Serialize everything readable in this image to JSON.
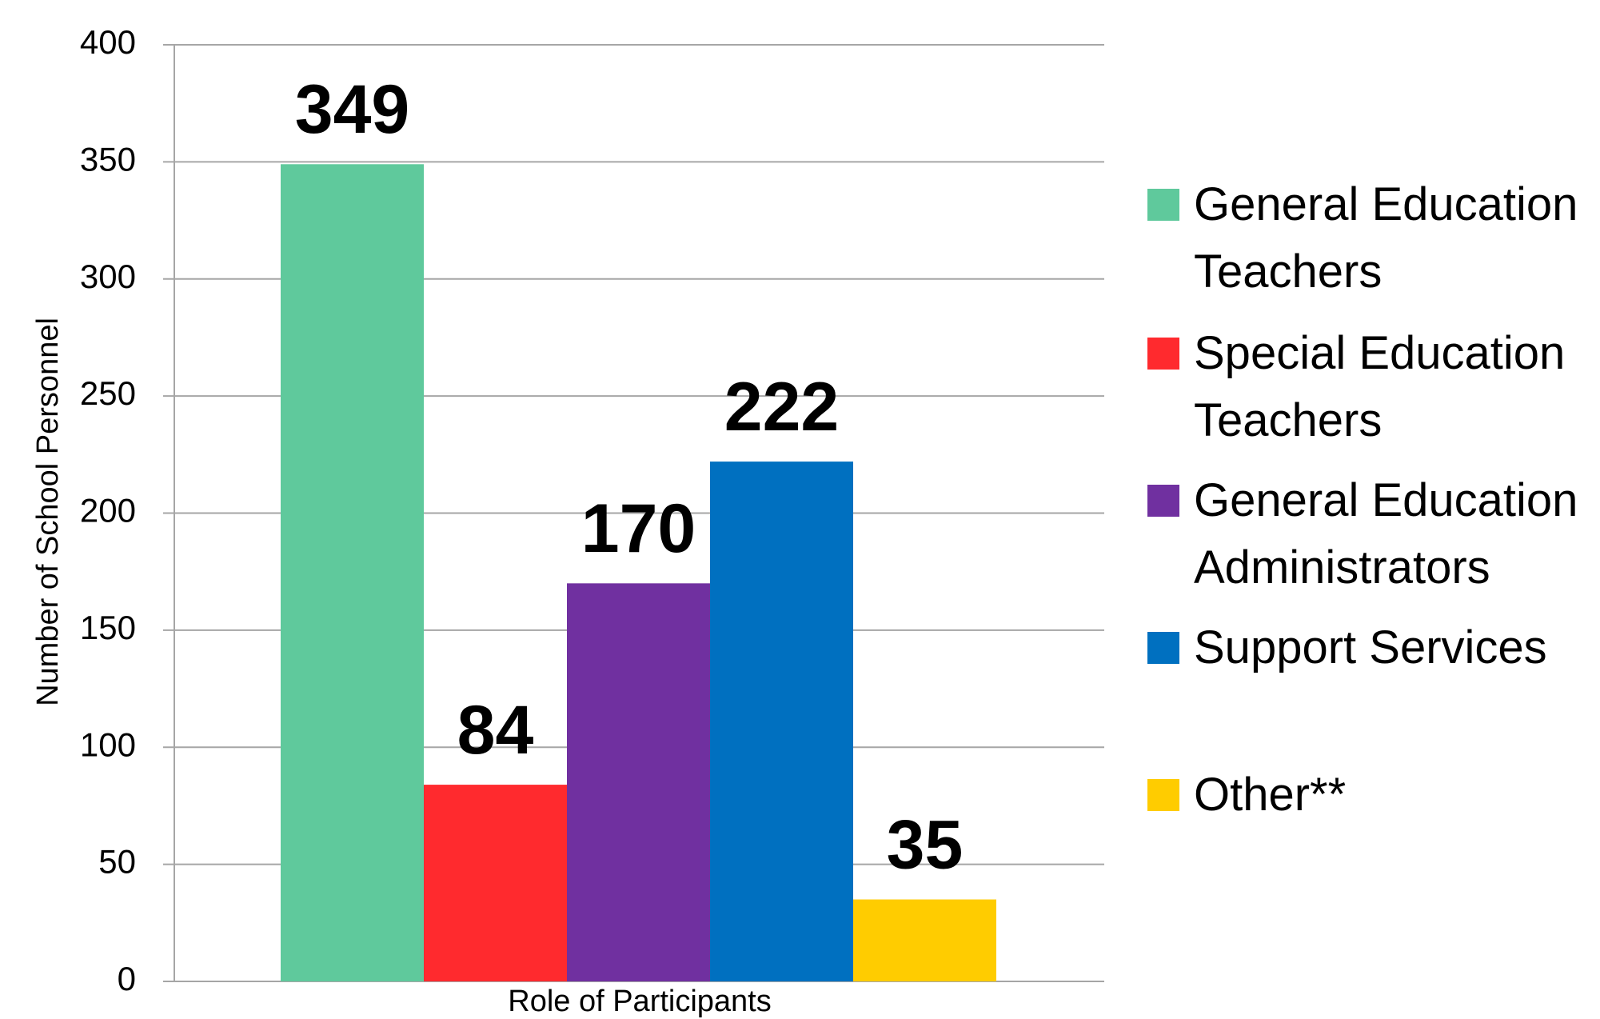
{
  "chart_data": {
    "type": "bar",
    "x_label": "Role of Participants",
    "y_label": "Number of School Personnel",
    "series": [
      {
        "name": "General Education Teachers",
        "color": "#5fc99c",
        "values": [
          349
        ]
      },
      {
        "name": "Special Education Teachers",
        "color": "#ff2a2e",
        "values": [
          84
        ]
      },
      {
        "name": "General Education Administrators",
        "color": "#7030a0",
        "values": [
          170
        ]
      },
      {
        "name": "Support Services",
        "color": "#0070c0",
        "values": [
          222
        ]
      },
      {
        "name": "Other**",
        "color": "#ffcc00",
        "values": [
          35
        ]
      }
    ],
    "ylim": [
      0,
      400
    ],
    "yticks": [
      0,
      50,
      100,
      150,
      200,
      250,
      300,
      350,
      400
    ],
    "grid": true,
    "legend": "right"
  }
}
